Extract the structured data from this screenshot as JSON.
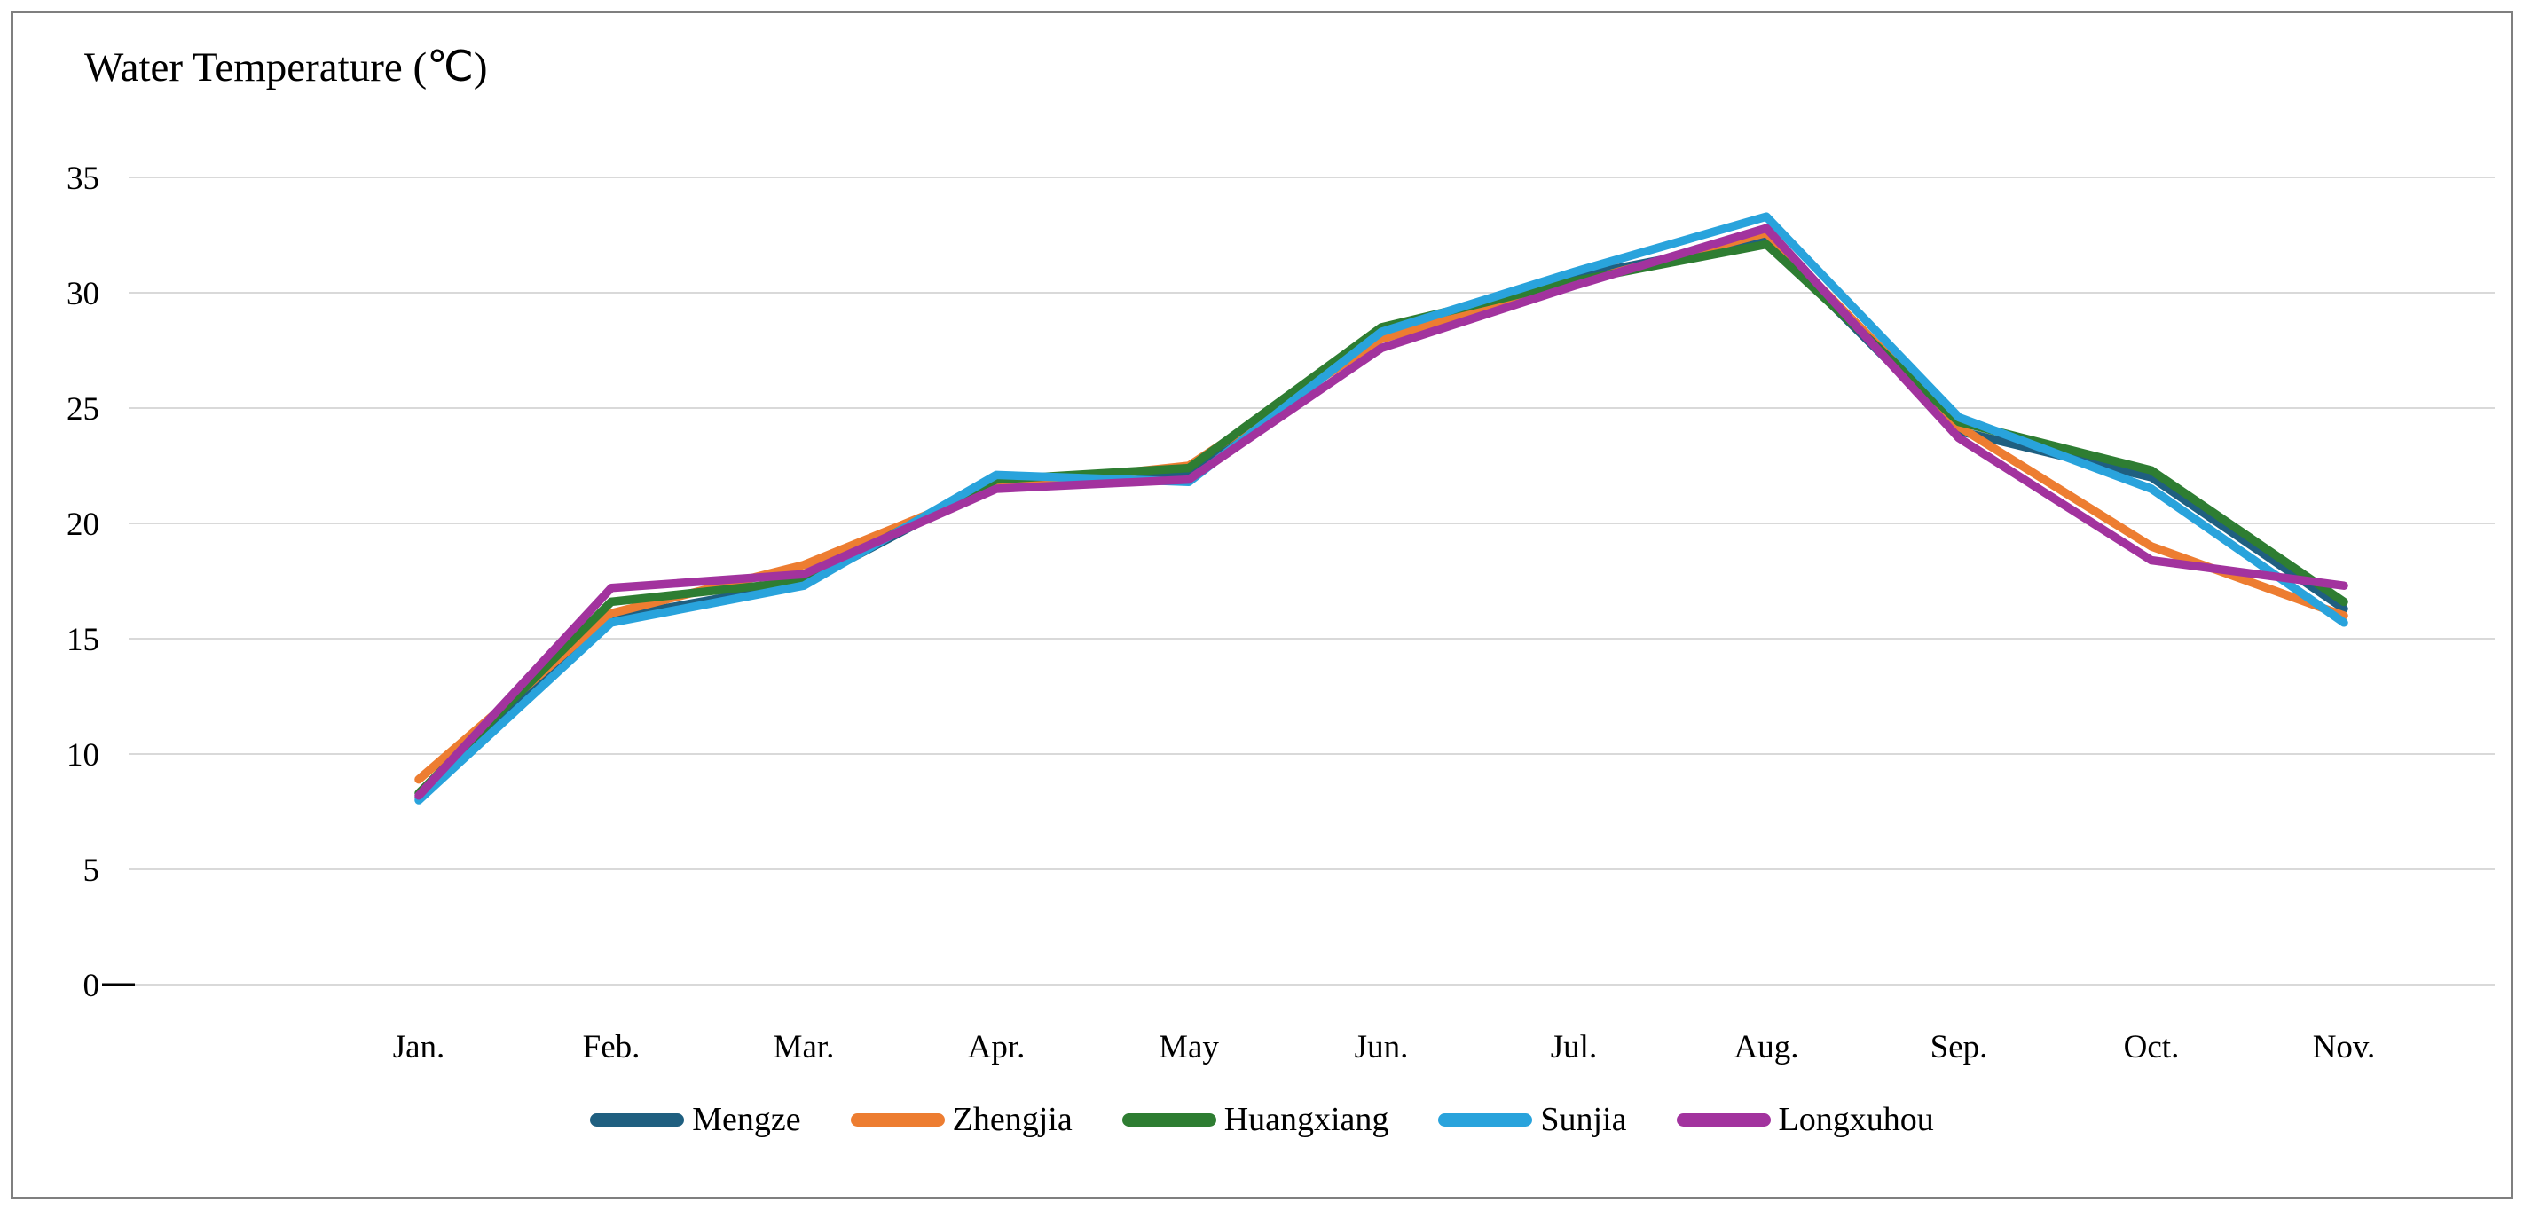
{
  "chart_data": {
    "type": "line",
    "title": "Water Temperature (℃)",
    "categories": [
      "Jan.",
      "Feb.",
      "Mar.",
      "Apr.",
      "May",
      "Jun.",
      "Jul.",
      "Aug.",
      "Sep.",
      "Oct.",
      "Nov."
    ],
    "series": [
      {
        "name": "Mengze",
        "color": "#1F5F80",
        "values": [
          8.1,
          15.9,
          17.4,
          21.8,
          22.1,
          28.2,
          30.7,
          32.3,
          24.0,
          22.0,
          16.3
        ]
      },
      {
        "name": "Zhengjia",
        "color": "#ED7D31",
        "values": [
          8.9,
          16.1,
          18.2,
          21.6,
          22.5,
          28.0,
          30.4,
          32.6,
          24.2,
          19.0,
          16.0
        ]
      },
      {
        "name": "Huangxiang",
        "color": "#2E7D32",
        "values": [
          8.3,
          16.6,
          17.5,
          21.9,
          22.4,
          28.5,
          30.5,
          32.1,
          24.4,
          22.3,
          16.6
        ]
      },
      {
        "name": "Sunjia",
        "color": "#29A3DC",
        "values": [
          8.0,
          15.7,
          17.3,
          22.1,
          21.8,
          28.3,
          30.9,
          33.3,
          24.6,
          21.5,
          15.7
        ]
      },
      {
        "name": "Longxuhou",
        "color": "#A2339E",
        "values": [
          8.2,
          17.2,
          17.8,
          21.5,
          21.9,
          27.6,
          30.3,
          32.8,
          23.7,
          18.4,
          17.3
        ]
      }
    ],
    "yticks": [
      0,
      5,
      10,
      15,
      20,
      25,
      30,
      35
    ],
    "ylim": [
      0,
      35
    ],
    "xlabel": "",
    "ylabel": "",
    "grid": "horizontal",
    "legend_position": "bottom"
  },
  "colors": {
    "background": "#ffffff",
    "gridline": "#d9d9d9",
    "axis_tick": "#000000",
    "frame_border": "#7f7f7f",
    "text": "#000000"
  }
}
